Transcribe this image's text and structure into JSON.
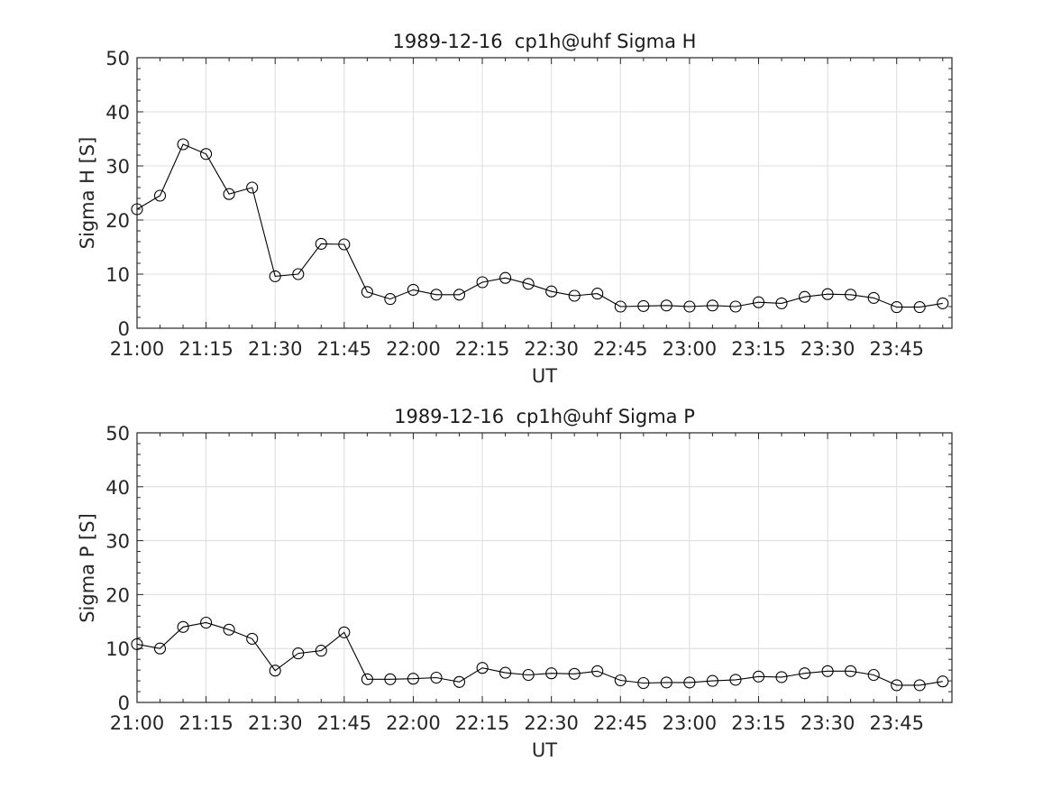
{
  "chart_data": [
    {
      "type": "line",
      "title": "1989-12-16  cp1h@uhf Sigma H",
      "xlabel": "UT",
      "ylabel": "Sigma H [S]",
      "ylim": [
        0,
        50
      ],
      "yticks": [
        0,
        10,
        20,
        30,
        40,
        50
      ],
      "xlim": [
        "21:00",
        "23:57"
      ],
      "xtick_labels": [
        "21:00",
        "21:15",
        "21:30",
        "21:45",
        "22:00",
        "22:15",
        "22:30",
        "22:45",
        "23:00",
        "23:15",
        "23:30",
        "23:45"
      ],
      "grid": true,
      "marker": "circle",
      "x": [
        "21:00",
        "21:05",
        "21:10",
        "21:15",
        "21:20",
        "21:25",
        "21:30",
        "21:35",
        "21:40",
        "21:45",
        "21:50",
        "21:55",
        "22:00",
        "22:05",
        "22:10",
        "22:15",
        "22:20",
        "22:25",
        "22:30",
        "22:35",
        "22:40",
        "22:45",
        "22:50",
        "22:55",
        "23:00",
        "23:05",
        "23:10",
        "23:15",
        "23:20",
        "23:25",
        "23:30",
        "23:35",
        "23:40",
        "23:45",
        "23:50",
        "23:55"
      ],
      "values": [
        22.0,
        24.5,
        34.0,
        32.2,
        24.8,
        26.0,
        9.6,
        10.0,
        15.6,
        15.5,
        6.7,
        5.4,
        7.1,
        6.2,
        6.2,
        8.5,
        9.3,
        8.2,
        6.8,
        6.0,
        6.4,
        4.0,
        4.1,
        4.2,
        4.0,
        4.2,
        4.0,
        4.8,
        4.6,
        5.8,
        6.3,
        6.2,
        5.6,
        3.9,
        3.9,
        4.6
      ]
    },
    {
      "type": "line",
      "title": "1989-12-16  cp1h@uhf Sigma P",
      "xlabel": "UT",
      "ylabel": "Sigma P [S]",
      "ylim": [
        0,
        50
      ],
      "yticks": [
        0,
        10,
        20,
        30,
        40,
        50
      ],
      "xlim": [
        "21:00",
        "23:57"
      ],
      "xtick_labels": [
        "21:00",
        "21:15",
        "21:30",
        "21:45",
        "22:00",
        "22:15",
        "22:30",
        "22:45",
        "23:00",
        "23:15",
        "23:30",
        "23:45"
      ],
      "grid": true,
      "marker": "circle",
      "x": [
        "21:00",
        "21:05",
        "21:10",
        "21:15",
        "21:20",
        "21:25",
        "21:30",
        "21:35",
        "21:40",
        "21:45",
        "21:50",
        "21:55",
        "22:00",
        "22:05",
        "22:10",
        "22:15",
        "22:20",
        "22:25",
        "22:30",
        "22:35",
        "22:40",
        "22:45",
        "22:50",
        "22:55",
        "23:00",
        "23:05",
        "23:10",
        "23:15",
        "23:20",
        "23:25",
        "23:30",
        "23:35",
        "23:40",
        "23:45",
        "23:50",
        "23:55"
      ],
      "values": [
        10.8,
        10.0,
        14.0,
        14.8,
        13.5,
        11.8,
        5.9,
        9.1,
        9.6,
        13.0,
        4.3,
        4.3,
        4.4,
        4.6,
        3.8,
        6.4,
        5.5,
        5.1,
        5.4,
        5.3,
        5.8,
        4.1,
        3.6,
        3.7,
        3.7,
        4.0,
        4.2,
        4.8,
        4.7,
        5.4,
        5.8,
        5.8,
        5.1,
        3.2,
        3.2,
        3.9
      ]
    }
  ]
}
